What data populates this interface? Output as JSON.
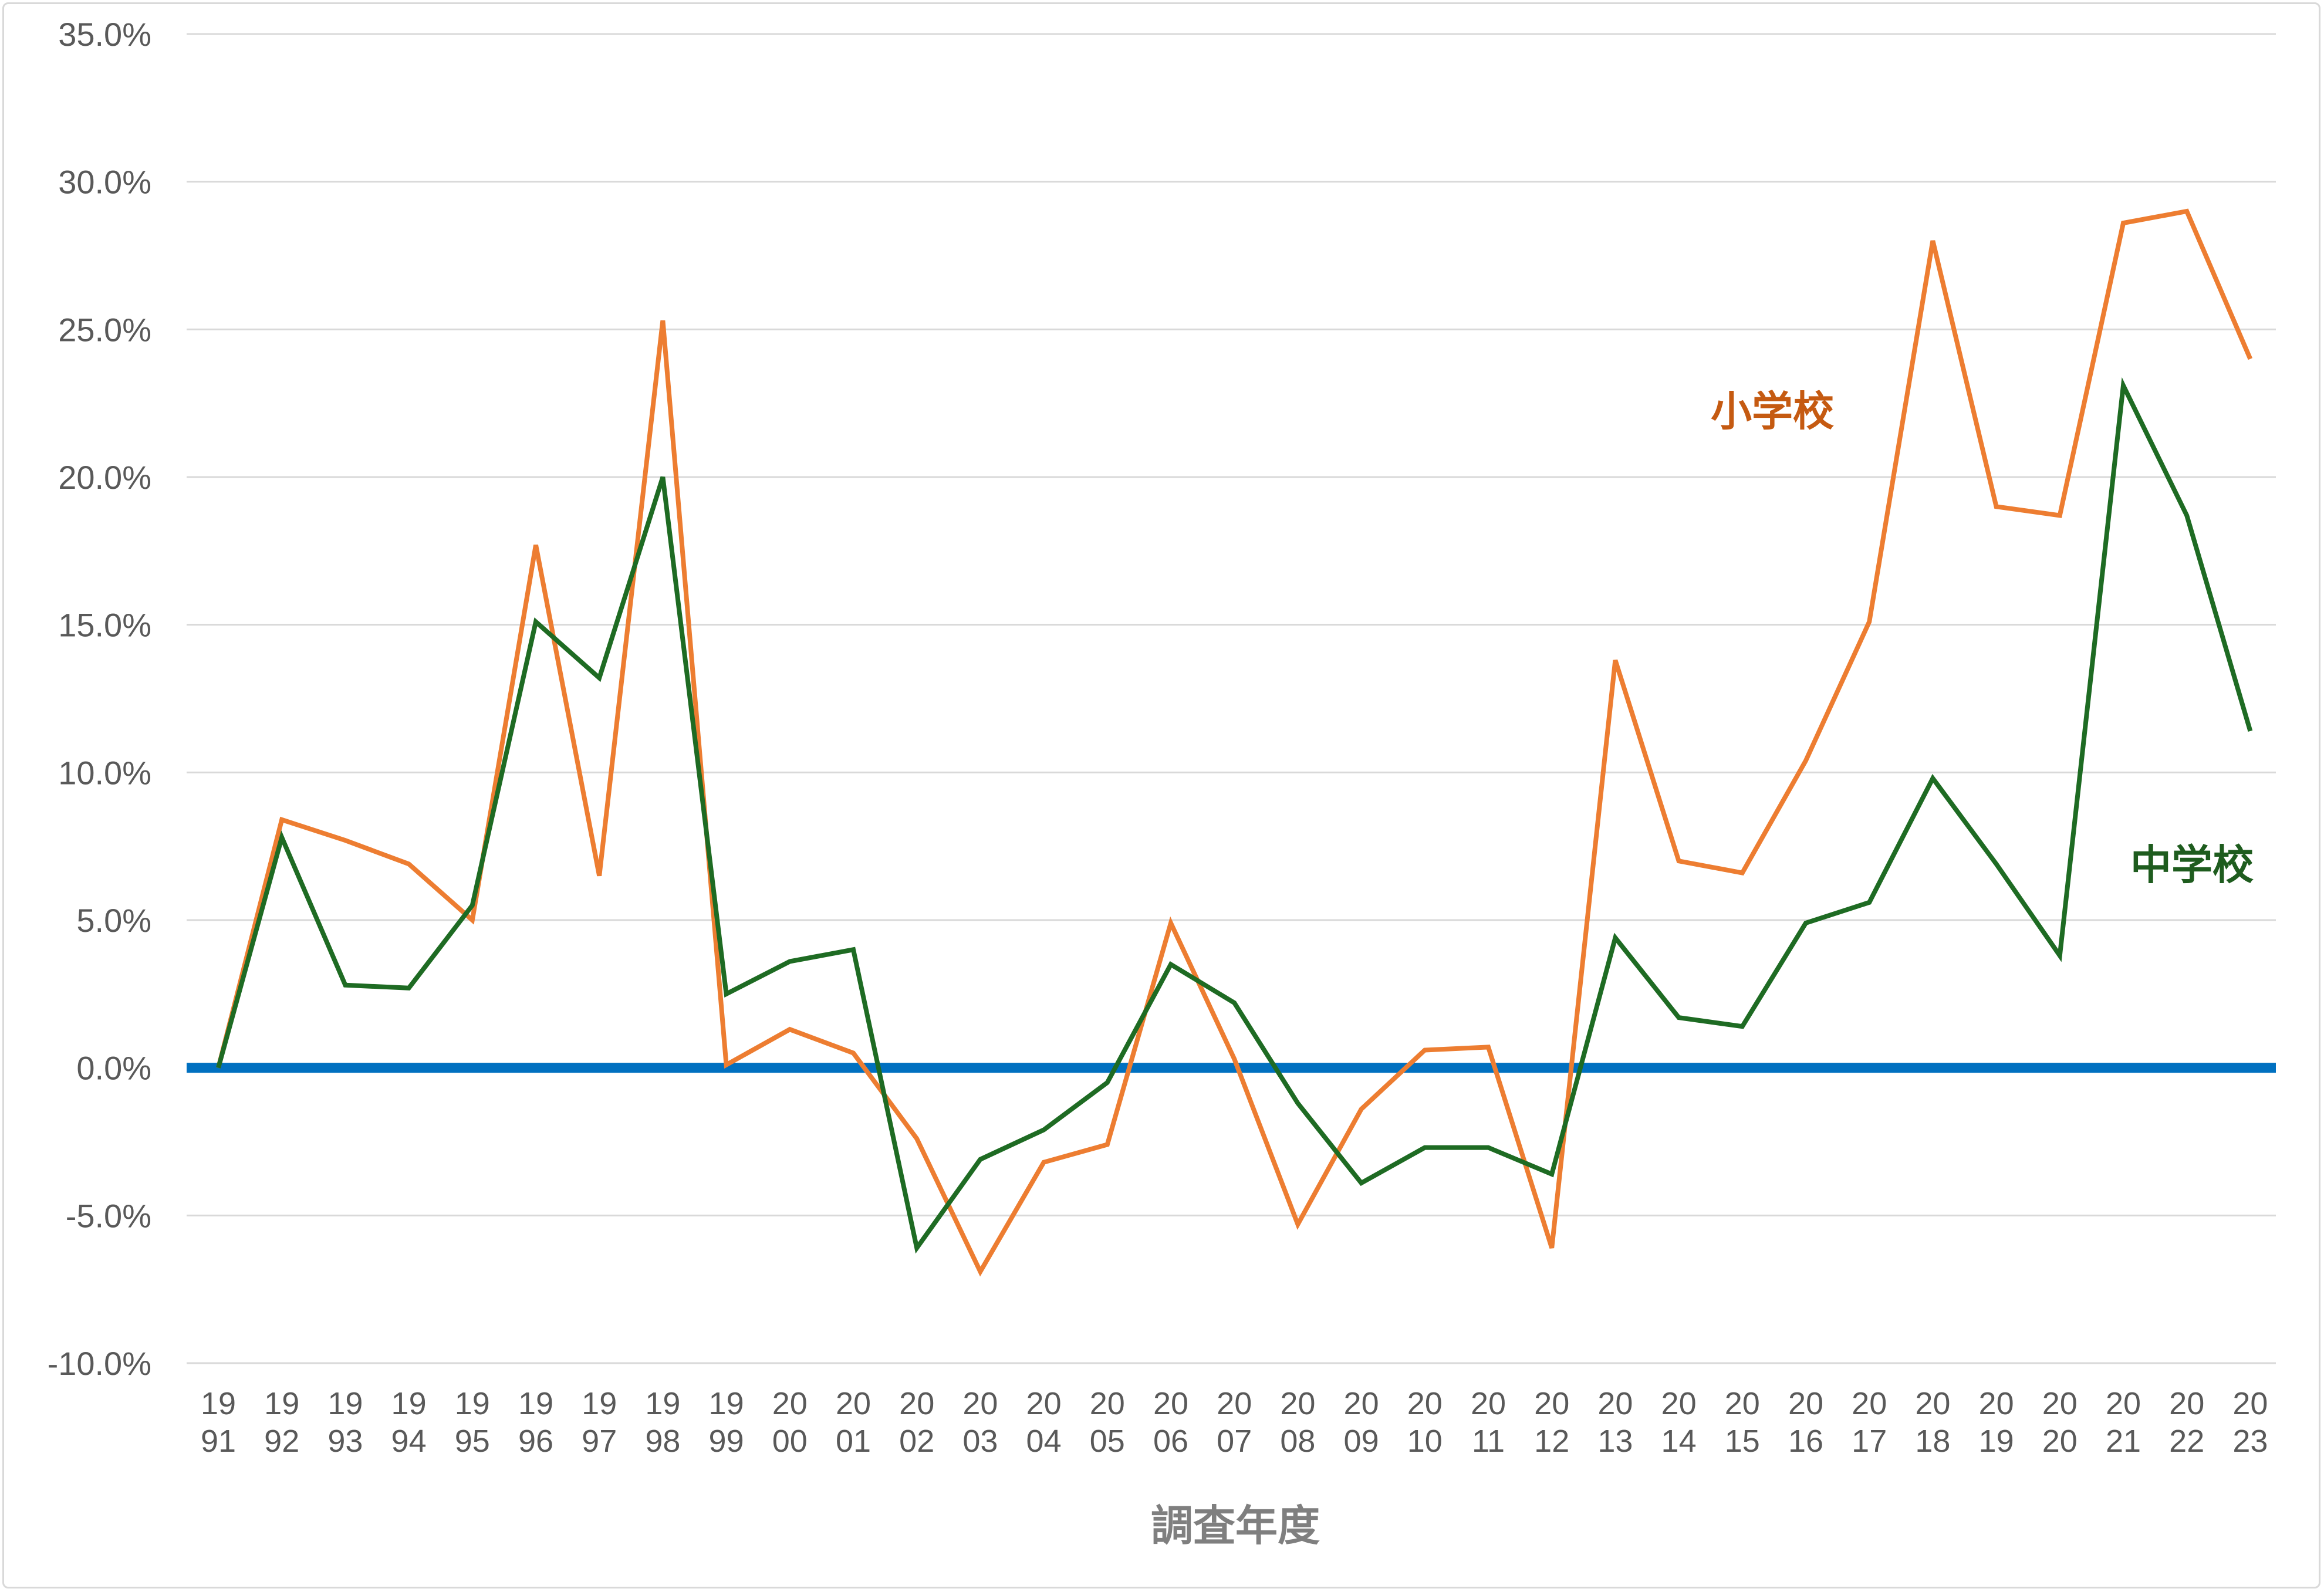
{
  "chart_data": {
    "type": "line",
    "title": "",
    "xlabel": "調査年度",
    "ylabel": "",
    "ylim": [
      -10,
      35
    ],
    "ytick_step": 5,
    "grid": true,
    "categories": [
      "1991",
      "1992",
      "1993",
      "1994",
      "1995",
      "1996",
      "1997",
      "1998",
      "1999",
      "2000",
      "2001",
      "2002",
      "2003",
      "2004",
      "2005",
      "2006",
      "2007",
      "2008",
      "2009",
      "2010",
      "2011",
      "2012",
      "2013",
      "2014",
      "2015",
      "2016",
      "2017",
      "2018",
      "2019",
      "2020",
      "2021",
      "2022",
      "2023"
    ],
    "series": [
      {
        "name": "小学校",
        "color": "#ed7d31",
        "label_color": "#c55a11",
        "values": [
          0.0,
          8.4,
          7.7,
          6.9,
          5.0,
          17.7,
          6.5,
          25.3,
          0.1,
          1.3,
          0.5,
          -2.4,
          -6.9,
          -3.2,
          -2.6,
          4.9,
          0.3,
          -5.3,
          -1.4,
          0.6,
          0.7,
          -6.1,
          13.8,
          7.0,
          6.6,
          10.4,
          15.1,
          28.0,
          19.0,
          18.7,
          28.6,
          29.0,
          24.0
        ]
      },
      {
        "name": "中学校",
        "color": "#1e6b23",
        "label_color": "#1e5c1e",
        "values": [
          0.0,
          7.8,
          2.8,
          2.7,
          5.5,
          15.1,
          13.2,
          20.0,
          2.5,
          3.6,
          4.0,
          -6.1,
          -3.1,
          -2.1,
          -0.5,
          3.5,
          2.2,
          -1.2,
          -3.9,
          -2.7,
          -2.7,
          -3.6,
          4.4,
          1.7,
          1.4,
          4.9,
          5.6,
          9.8,
          6.9,
          3.8,
          23.1,
          18.7,
          11.4
        ]
      }
    ],
    "zero_line_color": "#0070c0",
    "gridline_color": "#d9d9d9"
  }
}
